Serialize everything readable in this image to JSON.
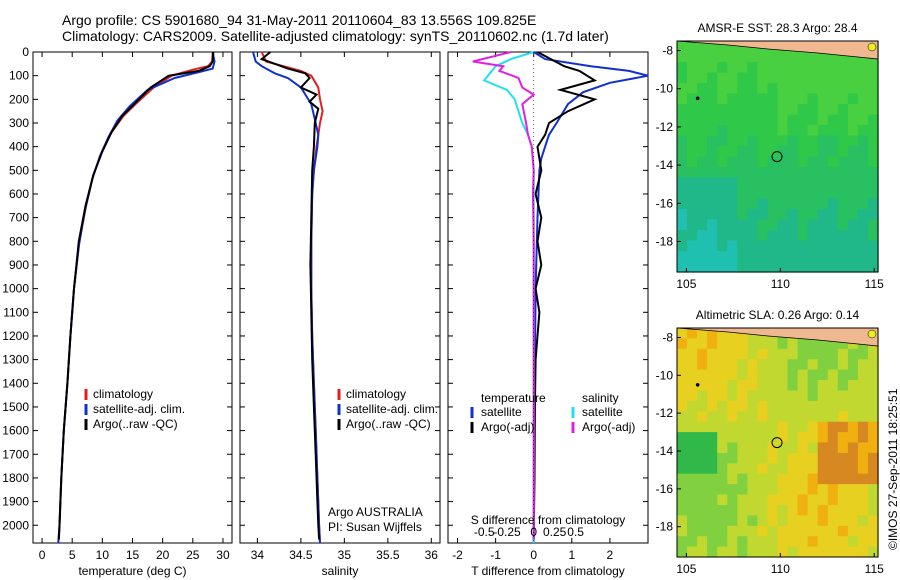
{
  "header": {
    "line1": "Argo profile: CS 5901680_94 31-May-2011 20110604_83 13.556S 109.825E",
    "line2": "Climatology: CARS2009. Satellite-adjusted climatology: synTS_20110602.nc (1.7d later)"
  },
  "credit": "©IMOS 27-Sep-2011 18:25:51",
  "colors": {
    "climatology": "#e02020",
    "satellite": "#1030d0",
    "argo": "#000000",
    "sal_satellite": "#20e0f0",
    "sal_argo": "#e020e0"
  },
  "chart_data": [
    {
      "id": "temperature",
      "type": "line",
      "xlabel": "temperature (deg C)",
      "ylabel": "",
      "xlim": [
        -1.5,
        31.5
      ],
      "ylim": [
        2075,
        0
      ],
      "xticks": [
        0,
        5,
        10,
        15,
        20,
        25,
        30
      ],
      "yticks": [
        0,
        100,
        200,
        300,
        400,
        500,
        600,
        700,
        800,
        900,
        1000,
        1100,
        1200,
        1300,
        1400,
        1500,
        1600,
        1700,
        1800,
        1900,
        2000
      ],
      "legend": [
        "climatology",
        "satellite-adj. clim.",
        "Argo(..raw -QC)"
      ],
      "series": [
        {
          "name": "climatology",
          "color": "#e02020",
          "points": [
            [
              28.3,
              0
            ],
            [
              28.2,
              40
            ],
            [
              27.5,
              60
            ],
            [
              25,
              75
            ],
            [
              21.5,
              100
            ],
            [
              18.5,
              150
            ],
            [
              15.5,
              220
            ],
            [
              13.5,
              270
            ],
            [
              11.5,
              340
            ],
            [
              10,
              420
            ],
            [
              8.5,
              520
            ],
            [
              7.3,
              650
            ],
            [
              6.2,
              800
            ],
            [
              5.3,
              1000
            ],
            [
              4.7,
              1200
            ],
            [
              4.2,
              1400
            ],
            [
              3.6,
              1600
            ],
            [
              3.2,
              1800
            ],
            [
              2.9,
              2000
            ],
            [
              2.7,
              2075
            ]
          ]
        },
        {
          "name": "satellite-adj. clim.",
          "color": "#1030d0",
          "points": [
            [
              28.3,
              0
            ],
            [
              28.6,
              40
            ],
            [
              28.3,
              70
            ],
            [
              26,
              85
            ],
            [
              22,
              110
            ],
            [
              17.5,
              160
            ],
            [
              14.5,
              230
            ],
            [
              12.5,
              290
            ],
            [
              11,
              360
            ],
            [
              9.6,
              440
            ],
            [
              8.3,
              540
            ],
            [
              7.1,
              670
            ],
            [
              6.1,
              820
            ],
            [
              5.3,
              1000
            ],
            [
              4.7,
              1200
            ],
            [
              4.2,
              1400
            ],
            [
              3.6,
              1600
            ],
            [
              3.2,
              1800
            ],
            [
              2.9,
              2000
            ],
            [
              2.7,
              2075
            ]
          ]
        },
        {
          "name": "Argo(..raw -QC)",
          "color": "#000000",
          "points": [
            [
              28.4,
              0
            ],
            [
              28.3,
              40
            ],
            [
              27.8,
              60
            ],
            [
              26,
              80
            ],
            [
              21,
              100
            ],
            [
              18,
              150
            ],
            [
              15.3,
              220
            ],
            [
              13.3,
              270
            ],
            [
              11.5,
              340
            ],
            [
              10,
              420
            ],
            [
              8.5,
              520
            ],
            [
              7.2,
              650
            ],
            [
              6.1,
              800
            ],
            [
              5.3,
              1000
            ],
            [
              4.7,
              1200
            ],
            [
              4.2,
              1400
            ],
            [
              3.6,
              1600
            ],
            [
              3.2,
              1800
            ],
            [
              2.9,
              2000
            ],
            [
              2.8,
              2060
            ]
          ]
        }
      ]
    },
    {
      "id": "salinity",
      "type": "line",
      "xlabel": "salinity",
      "ylabel": "",
      "xlim": [
        33.8,
        36.1
      ],
      "ylim": [
        2075,
        0
      ],
      "xticks": [
        34,
        34.5,
        35,
        35.5,
        36
      ],
      "xticklabels": [
        "34",
        "34.5",
        "35",
        "35.5",
        "36"
      ],
      "legend": [
        "climatology",
        "satellite-adj. clim.",
        "Argo(..raw -QC)"
      ],
      "annotations": [
        "Argo AUSTRALIA",
        "PI: Susan Wijffels"
      ],
      "series": [
        {
          "name": "climatology",
          "color": "#e02020",
          "points": [
            [
              34.05,
              0
            ],
            [
              34.1,
              40
            ],
            [
              34.3,
              60
            ],
            [
              34.5,
              80
            ],
            [
              34.62,
              100
            ],
            [
              34.7,
              150
            ],
            [
              34.72,
              200
            ],
            [
              34.75,
              250
            ],
            [
              34.72,
              300
            ],
            [
              34.7,
              350
            ],
            [
              34.68,
              400
            ],
            [
              34.65,
              500
            ],
            [
              34.63,
              600
            ],
            [
              34.62,
              800
            ],
            [
              34.62,
              1000
            ],
            [
              34.63,
              1200
            ],
            [
              34.65,
              1400
            ],
            [
              34.67,
              1600
            ],
            [
              34.69,
              1800
            ],
            [
              34.71,
              2000
            ],
            [
              34.72,
              2075
            ]
          ]
        },
        {
          "name": "satellite-adj. clim.",
          "color": "#1030d0",
          "points": [
            [
              33.95,
              0
            ],
            [
              33.98,
              40
            ],
            [
              34.05,
              60
            ],
            [
              34.2,
              90
            ],
            [
              34.35,
              110
            ],
            [
              34.5,
              150
            ],
            [
              34.62,
              220
            ],
            [
              34.67,
              300
            ],
            [
              34.7,
              350
            ],
            [
              34.69,
              400
            ],
            [
              34.65,
              500
            ],
            [
              34.63,
              600
            ],
            [
              34.62,
              800
            ],
            [
              34.62,
              1000
            ],
            [
              34.63,
              1200
            ],
            [
              34.65,
              1400
            ],
            [
              34.67,
              1600
            ],
            [
              34.69,
              1800
            ],
            [
              34.71,
              2000
            ],
            [
              34.72,
              2075
            ]
          ]
        },
        {
          "name": "Argo(..raw -QC)",
          "color": "#000000",
          "points": [
            [
              34.15,
              0
            ],
            [
              34.05,
              30
            ],
            [
              34.2,
              50
            ],
            [
              34.35,
              70
            ],
            [
              34.55,
              90
            ],
            [
              34.6,
              110
            ],
            [
              34.5,
              150
            ],
            [
              34.68,
              180
            ],
            [
              34.6,
              210
            ],
            [
              34.7,
              240
            ],
            [
              34.66,
              300
            ],
            [
              34.65,
              400
            ],
            [
              34.63,
              500
            ],
            [
              34.62,
              700
            ],
            [
              34.61,
              900
            ],
            [
              34.62,
              1100
            ],
            [
              34.63,
              1300
            ],
            [
              34.65,
              1500
            ],
            [
              34.67,
              1700
            ],
            [
              34.69,
              1900
            ],
            [
              34.7,
              2000
            ],
            [
              34.71,
              2060
            ]
          ]
        }
      ]
    },
    {
      "id": "difference",
      "type": "line",
      "xlabel": "T difference from climatology",
      "xlabel_top": "S difference from climatology",
      "xlim": [
        -2.25,
        3.0
      ],
      "ylim": [
        2075,
        0
      ],
      "xticks": [
        -2,
        -1,
        0,
        1,
        2
      ],
      "s_ticks": [
        "-0.5",
        "-0.25",
        "0",
        "0.25",
        "0.5"
      ],
      "legend_headers": [
        "temperature",
        "salinity"
      ],
      "legend": [
        "satellite",
        "Argo(-adj)",
        "satellite",
        "Argo(-adj)"
      ],
      "series": [
        {
          "name": "satellite",
          "group": "temperature",
          "color": "#1030d0",
          "points": [
            [
              0,
              0
            ],
            [
              0.3,
              30
            ],
            [
              1.5,
              60
            ],
            [
              2.5,
              80
            ],
            [
              3.0,
              100
            ],
            [
              2.0,
              130
            ],
            [
              1.3,
              170
            ],
            [
              0.9,
              220
            ],
            [
              0.6,
              300
            ],
            [
              0.4,
              350
            ],
            [
              0.3,
              400
            ],
            [
              0.2,
              450
            ],
            [
              0.15,
              500
            ],
            [
              0.1,
              700
            ],
            [
              0.05,
              1000
            ],
            [
              0.02,
              1500
            ],
            [
              0,
              2075
            ]
          ]
        },
        {
          "name": "Argo(-adj)",
          "group": "temperature",
          "color": "#000000",
          "points": [
            [
              0.1,
              0
            ],
            [
              0.8,
              60
            ],
            [
              1.2,
              80
            ],
            [
              1.6,
              120
            ],
            [
              0.7,
              160
            ],
            [
              1.6,
              200
            ],
            [
              0.9,
              250
            ],
            [
              0.4,
              300
            ],
            [
              0.3,
              350
            ],
            [
              0.1,
              400
            ],
            [
              0.2,
              500
            ],
            [
              0.05,
              600
            ],
            [
              0.2,
              700
            ],
            [
              0.1,
              800
            ],
            [
              0.2,
              900
            ],
            [
              0.05,
              1000
            ],
            [
              0.15,
              1100
            ],
            [
              0.05,
              1300
            ],
            [
              0.03,
              1500
            ],
            [
              0.02,
              1800
            ],
            [
              0,
              2060
            ]
          ]
        },
        {
          "name": "satellite",
          "group": "salinity",
          "color": "#20e0f0",
          "points": [
            [
              0,
              0
            ],
            [
              -0.6,
              30
            ],
            [
              -1.0,
              60
            ],
            [
              -1.3,
              120
            ],
            [
              -0.7,
              160
            ],
            [
              -0.5,
              200
            ],
            [
              -0.3,
              300
            ],
            [
              -0.15,
              350
            ],
            [
              -0.05,
              400
            ],
            [
              0,
              500
            ],
            [
              0,
              2075
            ]
          ]
        },
        {
          "name": "Argo(-adj)",
          "group": "salinity",
          "color": "#e020e0",
          "points": [
            [
              -0.6,
              0
            ],
            [
              -1.6,
              40
            ],
            [
              -0.8,
              60
            ],
            [
              -0.9,
              80
            ],
            [
              -0.4,
              110
            ],
            [
              -0.3,
              150
            ],
            [
              0,
              180
            ],
            [
              -0.3,
              220
            ],
            [
              -0.2,
              300
            ],
            [
              -0.15,
              350
            ],
            [
              -0.05,
              400
            ],
            [
              0,
              500
            ],
            [
              -0.02,
              600
            ],
            [
              0,
              800
            ],
            [
              0,
              1000
            ],
            [
              0,
              1500
            ],
            [
              0,
              2060
            ]
          ]
        }
      ]
    },
    {
      "id": "sst_map",
      "type": "heatmap",
      "title": "AMSR-E SST: 28.3 Argo: 28.4",
      "xlim": [
        104.5,
        115.2
      ],
      "ylim": [
        -19.6,
        -7.5
      ],
      "xticks": [
        105,
        110,
        115
      ],
      "yticks": [
        -8,
        -10,
        -12,
        -14,
        -16,
        -18
      ],
      "marker": {
        "lon": 109.825,
        "lat": -13.556
      },
      "small_marker": {
        "lon": 105.6,
        "lat": -10.5
      },
      "palette": [
        "#48d040",
        "#30c848",
        "#28c060",
        "#20b888",
        "#20c0b0",
        "#20c0d8"
      ]
    },
    {
      "id": "sla_map",
      "type": "heatmap",
      "title": "Altimetric SLA: 0.26 Argo: 0.14",
      "xlim": [
        104.5,
        115.2
      ],
      "ylim": [
        -19.6,
        -7.5
      ],
      "xticks": [
        105,
        110,
        115
      ],
      "yticks": [
        -8,
        -10,
        -12,
        -14,
        -16,
        -18
      ],
      "marker": {
        "lon": 109.825,
        "lat": -13.556
      },
      "small_marker": {
        "lon": 105.6,
        "lat": -10.5
      },
      "palette": [
        "#30b848",
        "#80d040",
        "#c0d830",
        "#e8d020",
        "#f0b010",
        "#d88820"
      ]
    }
  ]
}
